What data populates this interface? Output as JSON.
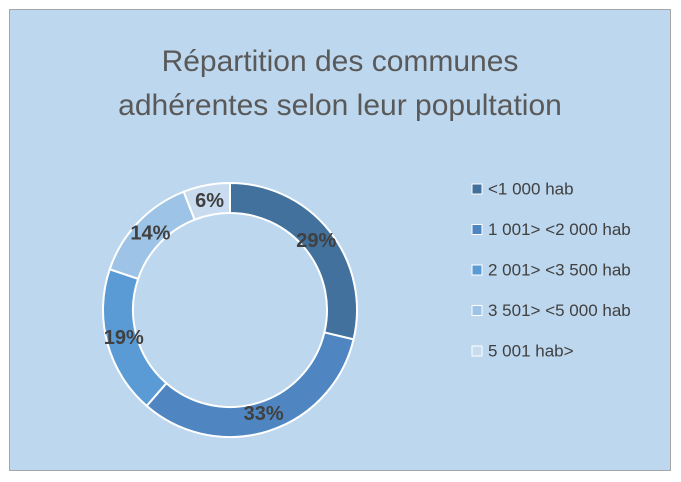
{
  "chart_data": {
    "type": "donut",
    "title": "Répartition des communes adhérentes selon leur popultation",
    "categories": [
      "<1 000 hab",
      "1 001> <2 000 hab",
      "2 001> <3 500 hab",
      "3 501> <5 000 hab",
      "5 001 hab>"
    ],
    "values": [
      29,
      33,
      19,
      14,
      6
    ],
    "value_labels": [
      "29%",
      "33%",
      "19%",
      "14%",
      "6%"
    ],
    "colors": [
      "#41719c",
      "#4f86c2",
      "#5b9bd5",
      "#9dc3e6",
      "#c9dcef"
    ],
    "legend": "right"
  }
}
